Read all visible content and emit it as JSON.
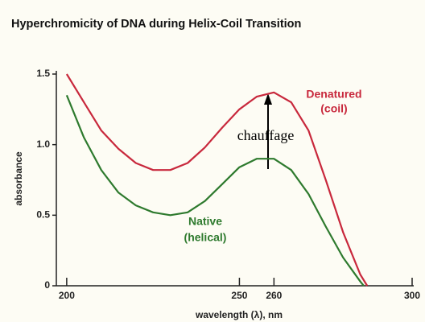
{
  "chart_data": {
    "type": "line",
    "title": "Hyperchromicity of DNA during Helix-Coil Transition",
    "xlabel": "wavelength (λ), nm",
    "ylabel": "absorbance",
    "xlim": [
      197,
      300
    ],
    "ylim": [
      0,
      1.5
    ],
    "xticks": [
      200,
      250,
      260,
      300
    ],
    "yticks": [
      0,
      0.5,
      {
        "value": 1,
        "label": "1.0"
      },
      1.5
    ],
    "series": [
      {
        "name": "Denatured",
        "sublabel": "(coil)",
        "color": "#c8283c",
        "x": [
          200,
          205,
          210,
          215,
          220,
          225,
          230,
          235,
          240,
          245,
          250,
          255,
          260,
          265,
          270,
          275,
          280,
          285,
          287
        ],
        "values": [
          1.5,
          1.3,
          1.1,
          0.97,
          0.87,
          0.82,
          0.82,
          0.87,
          0.98,
          1.12,
          1.25,
          1.34,
          1.37,
          1.3,
          1.1,
          0.75,
          0.38,
          0.08,
          0
        ]
      },
      {
        "name": "Native",
        "sublabel": "(helical)",
        "color": "#2e7a2e",
        "x": [
          200,
          205,
          210,
          215,
          220,
          225,
          230,
          235,
          240,
          245,
          250,
          255,
          260,
          265,
          270,
          275,
          280,
          285,
          286
        ],
        "values": [
          1.35,
          1.05,
          0.82,
          0.66,
          0.57,
          0.52,
          0.5,
          0.52,
          0.6,
          0.72,
          0.84,
          0.9,
          0.9,
          0.82,
          0.65,
          0.42,
          0.2,
          0.03,
          0
        ]
      }
    ],
    "annotation": "chauffage"
  }
}
